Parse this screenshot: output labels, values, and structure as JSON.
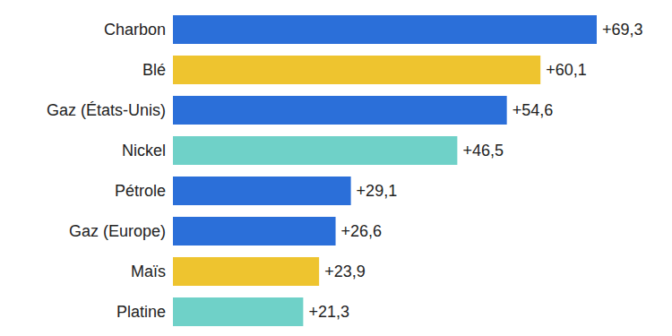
{
  "chart_data": {
    "type": "bar",
    "orientation": "horizontal",
    "categories": [
      "Charbon",
      "Blé",
      "Gaz (États-Unis)",
      "Nickel",
      "Pétrole",
      "Gaz (Europe)",
      "Maïs",
      "Platine"
    ],
    "values": [
      69.3,
      60.1,
      54.6,
      46.5,
      29.1,
      26.6,
      23.9,
      21.3
    ],
    "value_labels": [
      "+69,3",
      "+60,1",
      "+54,6",
      "+46,5",
      "+29,1",
      "+26,6",
      "+23,9",
      "+21,3"
    ],
    "colors": [
      "#2b6fd9",
      "#eec42f",
      "#2b6fd9",
      "#6fd1c8",
      "#2b6fd9",
      "#2b6fd9",
      "#eec42f",
      "#6fd1c8"
    ],
    "xlim": [
      0,
      69.3
    ],
    "data_labels": true,
    "tick_labels": "y",
    "grid": false
  }
}
